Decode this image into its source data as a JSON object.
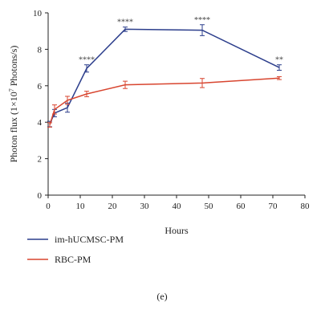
{
  "panel_label": "(e)",
  "chart_data": {
    "type": "line",
    "xlabel": "Hours",
    "ylabel": "Photon flux (1×10",
    "ylabel_exponent": "7",
    "ylabel_suffix": " Photons/s)",
    "xlim": [
      0,
      80
    ],
    "ylim": [
      0,
      10
    ],
    "xticks": [
      0,
      10,
      20,
      30,
      40,
      50,
      60,
      70,
      80
    ],
    "yticks": [
      0,
      2,
      4,
      6,
      8,
      10
    ],
    "grid": false,
    "legend_position": "bottom-left",
    "series": [
      {
        "name": "im-hUCMSC-PM",
        "color": "#2c3e8c",
        "x": [
          0.5,
          2,
          6,
          12,
          24,
          48,
          72
        ],
        "y": [
          3.9,
          4.5,
          4.8,
          6.95,
          9.1,
          9.05,
          7.0
        ],
        "err": [
          0.15,
          0.2,
          0.25,
          0.2,
          0.12,
          0.3,
          0.15
        ],
        "annotations": [
          {
            "x": 12,
            "text": "****"
          },
          {
            "x": 24,
            "text": "****"
          },
          {
            "x": 48,
            "text": "****"
          },
          {
            "x": 72,
            "text": "**"
          }
        ]
      },
      {
        "name": "RBC-PM",
        "color": "#d8452f",
        "x": [
          0.5,
          2,
          6,
          12,
          24,
          48,
          72
        ],
        "y": [
          3.85,
          4.7,
          5.2,
          5.55,
          6.05,
          6.15,
          6.42
        ],
        "err": [
          0.12,
          0.25,
          0.22,
          0.15,
          0.2,
          0.25,
          0.08
        ]
      }
    ]
  }
}
